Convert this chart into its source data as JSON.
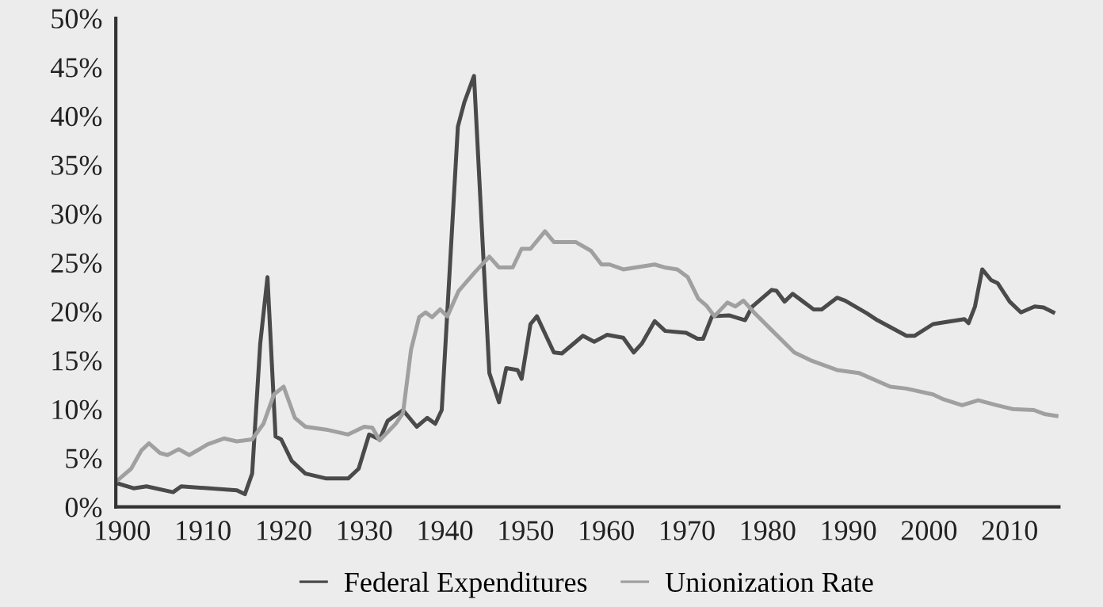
{
  "chart_data": {
    "type": "line",
    "xlim": [
      1899.2,
      2016.1
    ],
    "ylim": [
      0,
      50
    ],
    "xticks": [
      1900,
      1910,
      1920,
      1930,
      1940,
      1950,
      1960,
      1970,
      1980,
      1990,
      2000,
      2010
    ],
    "yticks": [
      {
        "value": 0,
        "label": "0%"
      },
      {
        "value": 5,
        "label": "5%"
      },
      {
        "value": 10,
        "label": "10%"
      },
      {
        "value": 15,
        "label": "15%"
      },
      {
        "value": 20,
        "label": "20%"
      },
      {
        "value": 25,
        "label": "25%"
      },
      {
        "value": 30,
        "label": "30%"
      },
      {
        "value": 35,
        "label": "35%"
      },
      {
        "value": 40,
        "label": "40%"
      },
      {
        "value": 45,
        "label": "45%"
      },
      {
        "value": 50,
        "label": "50%"
      }
    ],
    "grid": false,
    "legend": "bottom",
    "marker": "none",
    "line_style": "solid",
    "series": [
      {
        "name": "Federal Expenditures",
        "color": "#4a4a4a",
        "x": [
          1899.4,
          1901.4,
          1903,
          1906.3,
          1907.3,
          1914.2,
          1915.2,
          1916.1,
          1917.1,
          1918,
          1919,
          1919.7,
          1921,
          1922.7,
          1925.3,
          1928,
          1929.3,
          1930.6,
          1931.9,
          1932.9,
          1934.8,
          1936.5,
          1937.8,
          1938.8,
          1939.6,
          1941.6,
          1942.4,
          1943.6,
          1945.5,
          1946.7,
          1947.6,
          1949,
          1949.5,
          1950.6,
          1951.4,
          1953.5,
          1954.5,
          1957.1,
          1958.5,
          1960.1,
          1962.1,
          1963.4,
          1964.4,
          1966,
          1967.3,
          1969.9,
          1971.3,
          1972,
          1973.1,
          1975.2,
          1977.2,
          1978.1,
          1980.5,
          1981.1,
          1982.1,
          1983.1,
          1984.4,
          1985.7,
          1986.7,
          1988.6,
          1989.6,
          1992.3,
          1993.6,
          1997.2,
          1998.2,
          2000.5,
          2002.8,
          2004.4,
          2004.9,
          2005.7,
          2006.6,
          2007.7,
          2008.5,
          2010,
          2011.4,
          2013.1,
          2014.2,
          2015.4
        ],
        "values": [
          2.4,
          1.9,
          2.1,
          1.5,
          2.1,
          1.7,
          1.3,
          3.4,
          16.7,
          23.5,
          7.2,
          6.9,
          4.7,
          3.4,
          2.9,
          2.9,
          3.9,
          7.4,
          6.9,
          8.8,
          9.9,
          8.2,
          9.1,
          8.5,
          9.9,
          38.9,
          41.4,
          44.1,
          13.7,
          10.7,
          14.2,
          14,
          13.1,
          18.7,
          19.5,
          15.8,
          15.7,
          17.5,
          16.9,
          17.6,
          17.3,
          15.8,
          16.7,
          19,
          18,
          17.8,
          17.2,
          17.2,
          19.5,
          19.6,
          19.1,
          20.5,
          22.2,
          22.1,
          21,
          21.8,
          21,
          20.2,
          20.2,
          21.4,
          21.1,
          19.8,
          19.1,
          17.5,
          17.5,
          18.7,
          19,
          19.2,
          18.8,
          20.5,
          24.3,
          23.2,
          22.9,
          21,
          19.9,
          20.5,
          20.4,
          19.9
        ]
      },
      {
        "name": "Unionization Rate",
        "color": "#a0a0a0",
        "x": [
          1899.4,
          1901.1,
          1902.4,
          1903.3,
          1904.7,
          1905.6,
          1907,
          1908.3,
          1910.6,
          1912.6,
          1914.2,
          1916.1,
          1917.5,
          1918.8,
          1920,
          1921.4,
          1922.7,
          1925.3,
          1928,
          1930,
          1931,
          1931.9,
          1933.9,
          1934.8,
          1935.8,
          1936.8,
          1937.6,
          1938.4,
          1939.4,
          1940.3,
          1941.7,
          1943.7,
          1945.5,
          1946.7,
          1948.4,
          1949.5,
          1950.6,
          1952.4,
          1953.5,
          1956.2,
          1958.1,
          1959.4,
          1960.4,
          1962.1,
          1966,
          1967.2,
          1968.8,
          1970.1,
          1971.4,
          1972.4,
          1973.4,
          1975,
          1976,
          1977,
          1978.3,
          1980.6,
          1983.3,
          1985.3,
          1988.6,
          1991.3,
          1995.2,
          1997.2,
          2000.5,
          2001.8,
          2004.1,
          2006.1,
          2008.4,
          2010.4,
          2013,
          2014.3,
          2015.8
        ],
        "values": [
          2.7,
          3.9,
          5.8,
          6.5,
          5.5,
          5.3,
          5.9,
          5.3,
          6.4,
          7,
          6.7,
          6.9,
          8.5,
          11.5,
          12.3,
          9.1,
          8.2,
          7.9,
          7.4,
          8.2,
          8.1,
          6.8,
          8.5,
          9.6,
          16.1,
          19.4,
          19.9,
          19.4,
          20.2,
          19.5,
          22.1,
          24,
          25.6,
          24.5,
          24.5,
          26.4,
          26.4,
          28.2,
          27.1,
          27.1,
          26.2,
          24.8,
          24.8,
          24.3,
          24.8,
          24.5,
          24.3,
          23.5,
          21.3,
          20.6,
          19.5,
          20.9,
          20.5,
          21.1,
          19.9,
          18,
          15.8,
          15,
          14,
          13.7,
          12.3,
          12.1,
          11.5,
          11,
          10.4,
          10.9,
          10.4,
          10,
          9.9,
          9.5,
          9.3
        ]
      }
    ]
  }
}
